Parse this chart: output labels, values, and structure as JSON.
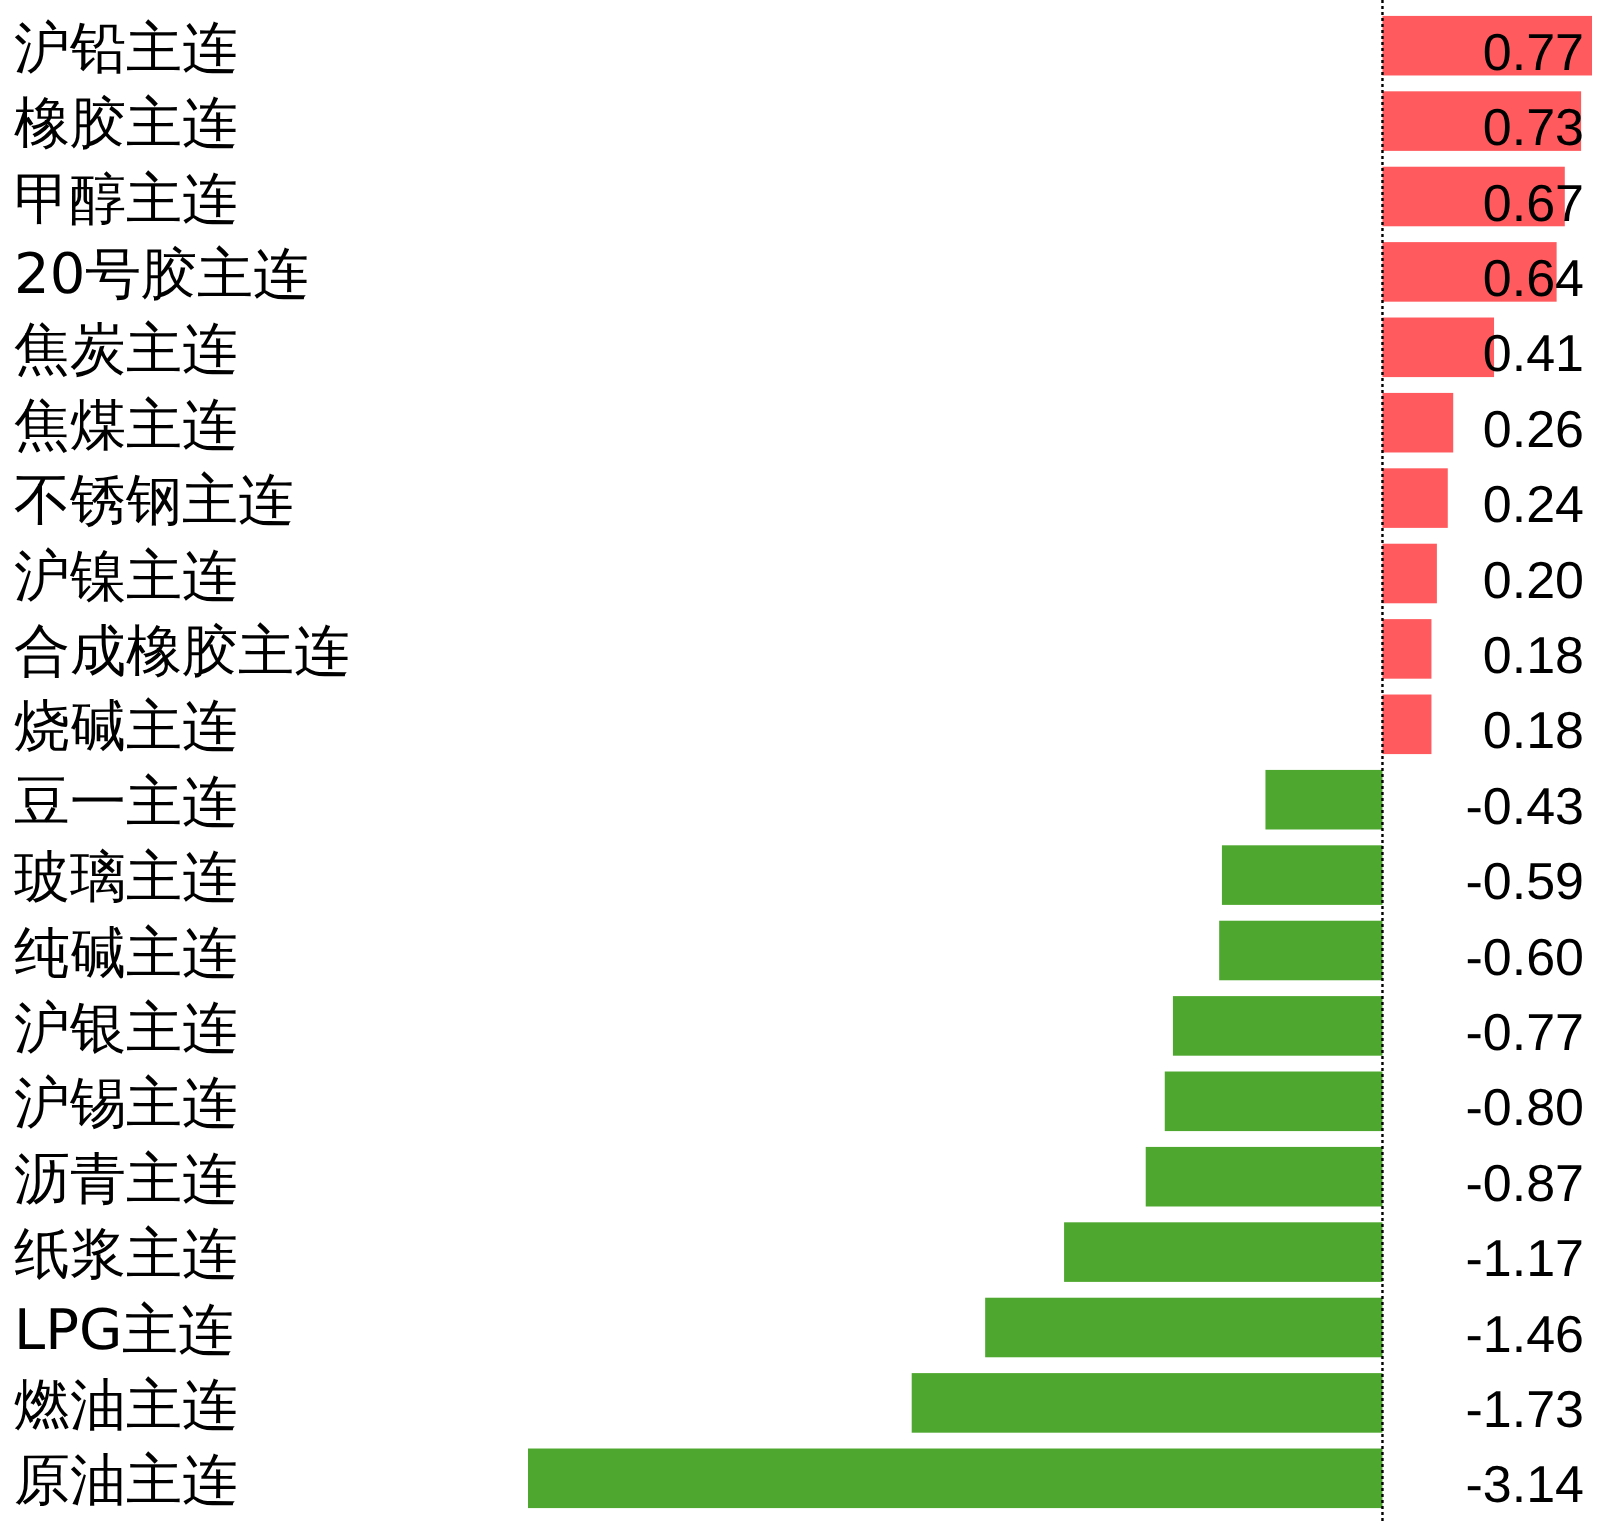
{
  "chart_data": {
    "type": "bar",
    "orientation": "horizontal",
    "tick_labels": "y",
    "categories": [
      "沪铅主连",
      "橡胶主连",
      "甲醇主连",
      "20号胶主连",
      "焦炭主连",
      "焦煤主连",
      "不锈钢主连",
      "沪镍主连",
      "合成橡胶主连",
      "烧碱主连",
      "豆一主连",
      "玻璃主连",
      "纯碱主连",
      "沪银主连",
      "沪锡主连",
      "沥青主连",
      "纸浆主连",
      "LPG主连",
      "燃油主连",
      "原油主连"
    ],
    "values": [
      0.77,
      0.73,
      0.67,
      0.64,
      0.41,
      0.26,
      0.24,
      0.2,
      0.18,
      0.18,
      -0.43,
      -0.59,
      -0.6,
      -0.77,
      -0.8,
      -0.87,
      -1.17,
      -1.46,
      -1.73,
      -3.14
    ],
    "colors": [
      "#ff5b5f",
      "#ff5b5f",
      "#ff5b5f",
      "#ff5b5f",
      "#ff5b5f",
      "#ff5b5f",
      "#ff5b5f",
      "#ff5b5f",
      "#ff5b5f",
      "#ff5b5f",
      "#4ea72e",
      "#4ea72e",
      "#4ea72e",
      "#4ea72e",
      "#4ea72e",
      "#4ea72e",
      "#4ea72e",
      "#4ea72e",
      "#4ea72e",
      "#4ea72e"
    ],
    "value_labels": [
      "0.77",
      "0.73",
      "0.67",
      "0.64",
      "0.41",
      "0.26",
      "0.24",
      "0.20",
      "0.18",
      "0.18",
      "-0.43",
      "-0.59",
      "-0.60",
      "-0.77",
      "-0.80",
      "-0.87",
      "-1.17",
      "-1.46",
      "-1.73",
      "-3.14"
    ],
    "ref_lines": [
      {
        "axis": "x",
        "value": 0,
        "color": "#000000",
        "line_style": "dotted"
      }
    ]
  }
}
